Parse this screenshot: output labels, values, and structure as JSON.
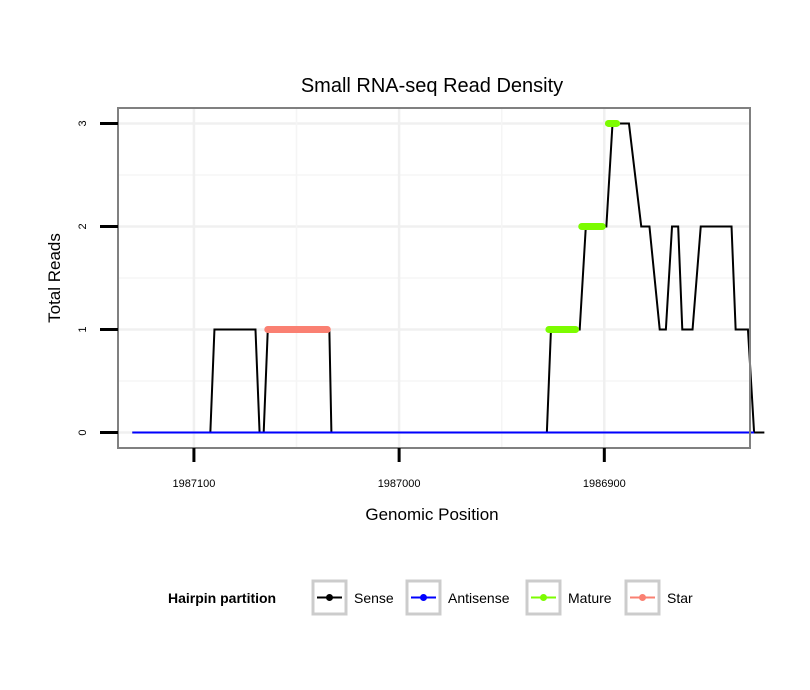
{
  "chart_data": {
    "type": "line",
    "title": "Small RNA-seq Read Density",
    "xlabel": "Genomic Position",
    "ylabel": "Total Reads",
    "x_reversed": true,
    "xlim": [
      1987137,
      1986829
    ],
    "ylim": [
      -0.15,
      3.15
    ],
    "x_ticks": [
      1987100,
      1987000,
      1986900
    ],
    "x_tick_labels": [
      "1987100",
      "1987000",
      "1986900"
    ],
    "y_ticks": [
      0,
      1,
      2,
      3
    ],
    "y_tick_labels": [
      "0",
      "1",
      "2",
      "3"
    ],
    "grid": true,
    "legend": {
      "title": "Hairpin partition",
      "position": "bottom",
      "entries": [
        {
          "label": "Sense",
          "color": "#000000"
        },
        {
          "label": "Antisense",
          "color": "#0000ff"
        },
        {
          "label": "Mature",
          "color": "#7cfc00"
        },
        {
          "label": "Star",
          "color": "#fa8072"
        }
      ]
    },
    "series": [
      {
        "name": "Sense",
        "color": "#000000",
        "x": [
          1987130,
          1987092,
          1987090,
          1987070,
          1987068,
          1987066,
          1987064,
          1987034,
          1987033,
          1986928,
          1986926,
          1986912,
          1986909,
          1986899,
          1986896,
          1986888,
          1986882,
          1986878,
          1986873,
          1986870,
          1986867,
          1986864,
          1986862,
          1986857,
          1986853,
          1986838,
          1986836,
          1986830,
          1986827,
          1986822
        ],
        "y": [
          0,
          0,
          1,
          1,
          0,
          0,
          1,
          1,
          0,
          0,
          1,
          1,
          2,
          2,
          3,
          3,
          2,
          2,
          1,
          1,
          2,
          2,
          1,
          1,
          2,
          2,
          1,
          1,
          0,
          0
        ]
      },
      {
        "name": "Antisense",
        "color": "#0000ff",
        "x": [
          1987130,
          1986827
        ],
        "y": [
          0,
          0
        ]
      }
    ],
    "segments": [
      {
        "name": "Star",
        "color": "#fa8072",
        "x": [
          1987064,
          1987035
        ],
        "y": 1
      },
      {
        "name": "Mature",
        "color": "#7cfc00",
        "x": [
          1986927,
          1986914
        ],
        "y": 1
      },
      {
        "name": "Mature",
        "color": "#7cfc00",
        "x": [
          1986911,
          1986901
        ],
        "y": 2
      },
      {
        "name": "Mature",
        "color": "#7cfc00",
        "x": [
          1986898,
          1986894
        ],
        "y": 3
      }
    ]
  }
}
